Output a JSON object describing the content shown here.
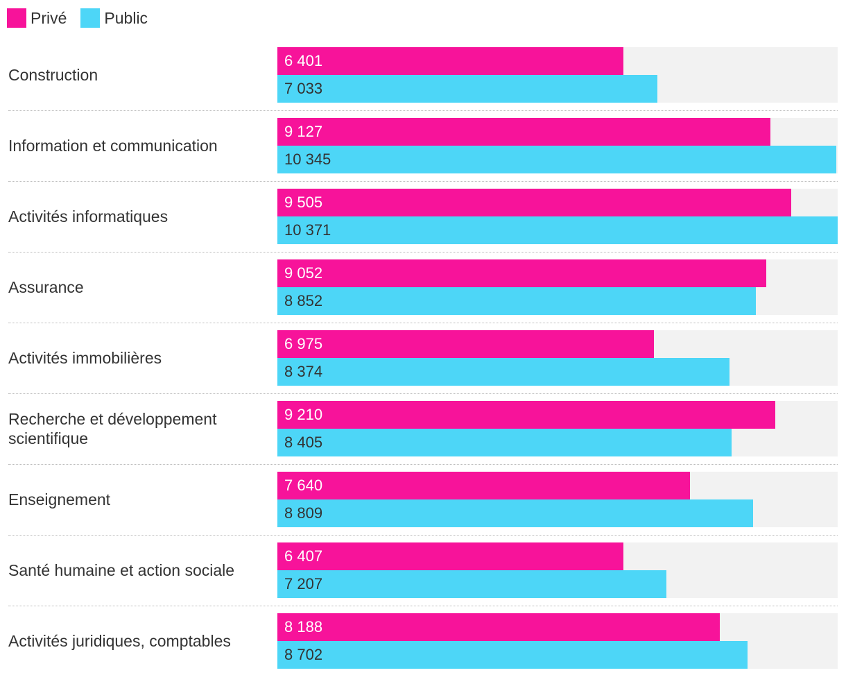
{
  "colors": {
    "prive": "#f7139a",
    "public": "#4dd6f7",
    "track": "#f2f2f2"
  },
  "legend": [
    {
      "label": "Privé",
      "color": "#f7139a"
    },
    {
      "label": "Public",
      "color": "#4dd6f7"
    }
  ],
  "chart_data": {
    "type": "bar",
    "orientation": "horizontal",
    "title": "",
    "xlabel": "",
    "ylabel": "",
    "xlim": [
      0,
      10371
    ],
    "legend_position": "top-left",
    "categories": [
      "Construction",
      "Information et communication",
      "Activités informatiques",
      "Assurance",
      "Activités immobilières",
      "Recherche et développement scientifique",
      "Enseignement",
      "Santé humaine et action sociale",
      "Activités juridiques, comptables"
    ],
    "series": [
      {
        "name": "Privé",
        "values": [
          6401,
          9127,
          9505,
          9052,
          6975,
          9210,
          7640,
          6407,
          8188
        ],
        "labels": [
          "6 401",
          "9 127",
          "9 505",
          "9 052",
          "6 975",
          "9 210",
          "7 640",
          "6 407",
          "8 188"
        ]
      },
      {
        "name": "Public",
        "values": [
          7033,
          10345,
          10371,
          8852,
          8374,
          8405,
          8809,
          7207,
          8702
        ],
        "labels": [
          "7 033",
          "10 345",
          "10 371",
          "8 852",
          "8 374",
          "8 405",
          "8 809",
          "7 207",
          "8 702"
        ]
      }
    ]
  }
}
